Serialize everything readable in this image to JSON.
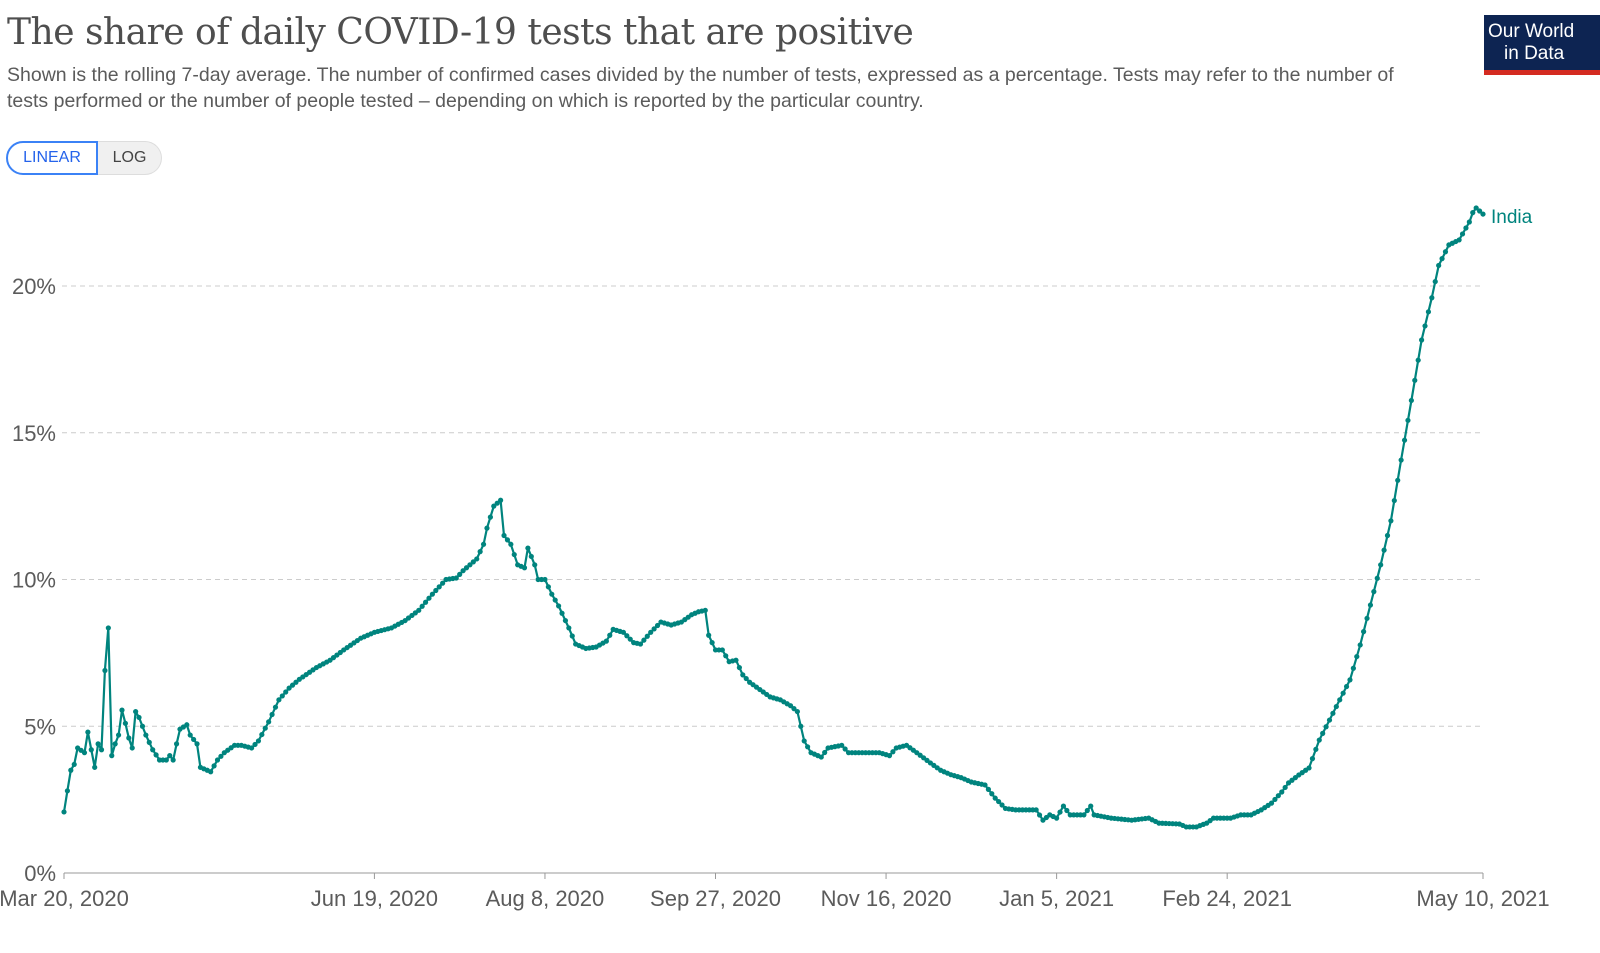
{
  "header": {
    "title": "The share of daily COVID-19 tests that are positive",
    "subtitle": "Shown is the rolling 7-day average. The number of confirmed cases divided by the number of tests, expressed as a percentage. Tests may refer to the number of tests performed or the number of people tested – depending on which is reported by the particular country.",
    "logo_line1": "Our World",
    "logo_line2": "in Data"
  },
  "scale_toggle": {
    "linear": "LINEAR",
    "log": "LOG",
    "selected": "LINEAR"
  },
  "chart_data": {
    "type": "line",
    "title": "The share of daily COVID-19 tests that are positive",
    "xlabel": "",
    "ylabel": "",
    "x_unit": "days since Mar 20, 2020",
    "xlim": [
      0,
      416
    ],
    "ylim": [
      0,
      22.7
    ],
    "grid": true,
    "y_ticks": [
      0,
      5,
      10,
      15,
      20
    ],
    "y_tick_labels": [
      "0%",
      "5%",
      "10%",
      "15%",
      "20%"
    ],
    "x_ticks": [
      0,
      91,
      141,
      191,
      241,
      291,
      341,
      416
    ],
    "x_tick_labels": [
      "Mar 20, 2020",
      "Jun 19, 2020",
      "Aug 8, 2020",
      "Sep 27, 2020",
      "Nov 16, 2020",
      "Jan 5, 2021",
      "Feb 24, 2021",
      "May 10, 2021"
    ],
    "series": [
      {
        "name": "India",
        "color": "#00847e",
        "x": [
          0,
          1,
          2,
          3,
          4,
          6,
          7,
          8,
          9,
          10,
          11,
          12,
          13,
          14,
          15,
          16,
          17,
          18,
          19,
          20,
          21,
          22,
          24,
          26,
          28,
          30,
          31,
          32,
          33,
          34,
          36,
          37,
          39,
          40,
          43,
          45,
          47,
          50,
          52,
          55,
          57,
          60,
          63,
          66,
          69,
          74,
          78,
          82,
          87,
          91,
          96,
          100,
          104,
          108,
          112,
          115,
          117,
          121,
          123,
          124,
          126,
          128,
          129,
          131,
          133,
          135,
          136,
          138,
          139,
          141,
          143,
          145,
          148,
          150,
          153,
          156,
          159,
          161,
          164,
          167,
          169,
          172,
          175,
          178,
          181,
          184,
          186,
          188,
          189,
          191,
          193,
          195,
          197,
          199,
          201,
          204,
          207,
          210,
          213,
          215,
          217,
          219,
          222,
          224,
          228,
          230,
          233,
          239,
          242,
          244,
          247,
          250,
          254,
          257,
          260,
          263,
          266,
          270,
          273,
          276,
          279,
          285,
          287,
          289,
          291,
          293,
          295,
          299,
          301,
          302,
          307,
          313,
          318,
          321,
          327,
          329,
          332,
          335,
          337,
          342,
          345,
          348,
          351,
          354,
          357,
          359,
          362,
          365,
          368,
          371,
          374,
          377,
          380,
          383,
          386,
          389,
          392,
          395,
          398,
          401,
          403,
          406,
          409,
          412,
          413,
          414,
          416
        ],
        "y": [
          2.08,
          2.8,
          3.5,
          3.7,
          4.26,
          4.1,
          4.8,
          4.2,
          3.6,
          4.4,
          4.2,
          6.9,
          8.35,
          4.0,
          4.4,
          4.7,
          5.55,
          5.1,
          4.6,
          4.26,
          5.5,
          5.3,
          4.7,
          4.2,
          3.85,
          3.85,
          4.0,
          3.85,
          4.4,
          4.9,
          5.05,
          4.7,
          4.4,
          3.6,
          3.45,
          3.85,
          4.1,
          4.35,
          4.35,
          4.26,
          4.5,
          5.15,
          5.9,
          6.3,
          6.6,
          7.0,
          7.25,
          7.6,
          8.0,
          8.2,
          8.35,
          8.6,
          8.95,
          9.5,
          10.0,
          10.05,
          10.3,
          10.7,
          11.2,
          11.75,
          12.5,
          12.7,
          11.5,
          11.2,
          10.5,
          10.4,
          11.07,
          10.5,
          10.0,
          10.0,
          9.5,
          9.1,
          8.35,
          7.8,
          7.65,
          7.7,
          7.9,
          8.3,
          8.2,
          7.85,
          7.8,
          8.2,
          8.55,
          8.45,
          8.55,
          8.8,
          8.9,
          8.95,
          8.1,
          7.6,
          7.6,
          7.2,
          7.25,
          6.75,
          6.5,
          6.25,
          6.0,
          5.9,
          5.7,
          5.5,
          4.5,
          4.1,
          3.95,
          4.26,
          4.35,
          4.1,
          4.1,
          4.1,
          4.0,
          4.26,
          4.35,
          4.1,
          3.75,
          3.5,
          3.35,
          3.25,
          3.1,
          3.0,
          2.55,
          2.2,
          2.15,
          2.15,
          1.8,
          1.98,
          1.87,
          2.28,
          1.98,
          1.98,
          2.28,
          1.98,
          1.87,
          1.8,
          1.87,
          1.7,
          1.67,
          1.57,
          1.57,
          1.7,
          1.87,
          1.87,
          1.98,
          1.98,
          2.15,
          2.38,
          2.76,
          3.07,
          3.34,
          3.58,
          4.53,
          5.21,
          5.9,
          6.58,
          7.77,
          9.13,
          10.5,
          12.0,
          14.07,
          16.1,
          18.16,
          19.6,
          20.7,
          21.4,
          21.57,
          22.18,
          22.5,
          22.66,
          22.45
        ]
      }
    ],
    "legend": "end-of-line label"
  }
}
